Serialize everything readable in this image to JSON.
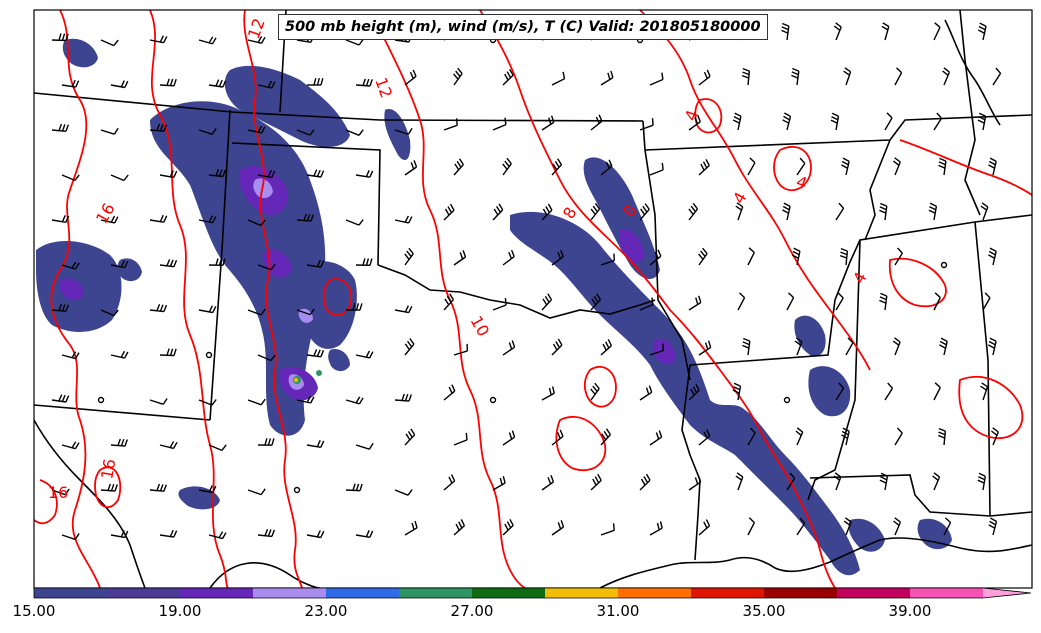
{
  "title": "500 mb height (m), wind (m/s), T (C) Valid: 201805180000",
  "colors": {
    "temperature_contour": "#ff0000",
    "state_borders": "#000000",
    "barbs": "#000000"
  },
  "temperature_labels": [
    "12",
    "12",
    "16",
    "16",
    "16",
    "10",
    "4",
    "4",
    "4",
    "4",
    "8",
    "8"
  ],
  "colorbar": {
    "ticks": [
      "15.00",
      "19.00",
      "23.00",
      "27.00",
      "31.00",
      "35.00",
      "39.00"
    ],
    "min": 15,
    "max": 42,
    "step": 2,
    "colors": [
      "#3d4591",
      "#4b3a96",
      "#6527b8",
      "#a98cf0",
      "#2f6be6",
      "#2e9464",
      "#0e6b14",
      "#f1bd07",
      "#ff6e00",
      "#e01500",
      "#9a0000",
      "#c2005e",
      "#f552b3",
      "#ffa0dd"
    ]
  }
}
